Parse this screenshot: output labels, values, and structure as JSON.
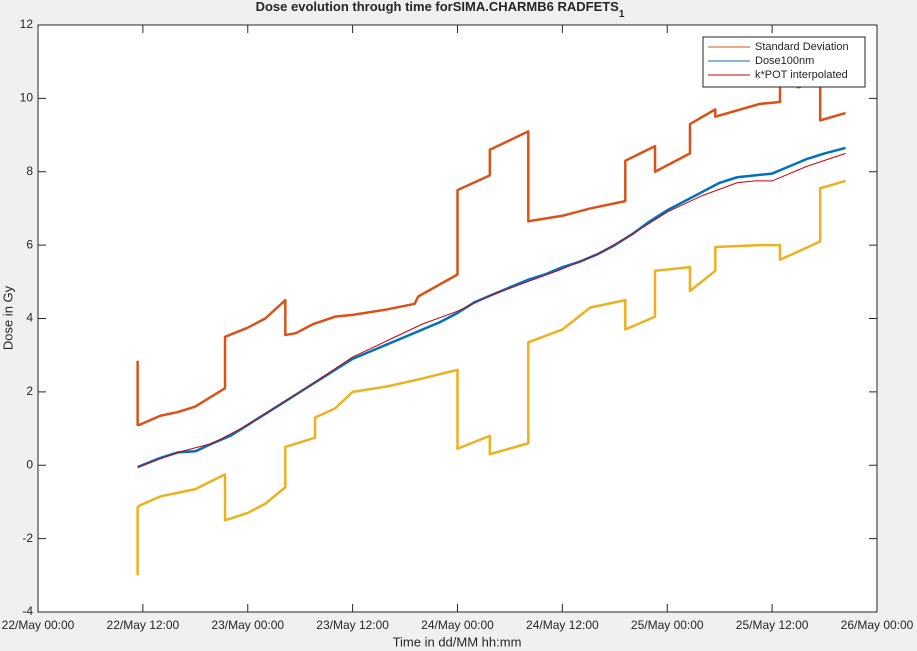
{
  "chart_data": {
    "type": "line",
    "title": "Dose evolution through time forSIMA.CHARMB6 RADFETS",
    "title_subscript": "1",
    "x_label": "Time in dd/MM hh:mm",
    "y_label": "Dose in Gy",
    "xlim": [
      0,
      96
    ],
    "xticks": [
      {
        "value": 0,
        "label": "22/May 00:00"
      },
      {
        "value": 12,
        "label": "22/May 12:00"
      },
      {
        "value": 24,
        "label": "23/May 00:00"
      },
      {
        "value": 36,
        "label": "23/May 12:00"
      },
      {
        "value": 48,
        "label": "24/May 00:00"
      },
      {
        "value": 60,
        "label": "24/May 12:00"
      },
      {
        "value": 72,
        "label": "25/May 00:00"
      },
      {
        "value": 84,
        "label": "25/May 12:00"
      },
      {
        "value": 96,
        "label": "26/May 00:00"
      }
    ],
    "ylim": [
      -4,
      12
    ],
    "yticks": [
      -4,
      -2,
      0,
      2,
      4,
      6,
      8,
      10,
      12
    ],
    "legend": "top-right",
    "series": [
      {
        "name": "Standard Deviation",
        "color": "#d95319",
        "x": [
          11.4,
          11.4,
          11.6,
          14,
          16,
          18,
          21.4,
          21.4,
          24,
          26,
          28.3,
          28.3,
          29.5,
          31.5,
          34,
          36,
          40,
          43.1,
          43.5,
          48,
          48,
          51.7,
          51.7,
          56.1,
          56.1,
          60,
          63.2,
          67.2,
          67.2,
          70.6,
          70.6,
          74.6,
          74.6,
          77.5,
          77.5,
          82.6,
          84.9,
          84.9,
          87,
          89.5,
          89.5,
          92.4
        ],
        "values": [
          2.85,
          1.1,
          1.1,
          1.35,
          1.45,
          1.6,
          2.1,
          3.5,
          3.75,
          4.0,
          4.5,
          3.55,
          3.6,
          3.85,
          4.05,
          4.1,
          4.25,
          4.4,
          4.6,
          5.2,
          7.5,
          7.9,
          8.6,
          9.1,
          6.65,
          6.8,
          7.0,
          7.2,
          8.3,
          8.7,
          8.0,
          8.5,
          9.3,
          9.7,
          9.5,
          9.85,
          9.9,
          10.6,
          10.3,
          10.5,
          9.4,
          9.6
        ]
      },
      {
        "name": "Dose100nm",
        "color": "#0072bd",
        "x": [
          11.4,
          14,
          16,
          18,
          20,
          22,
          24,
          26,
          28,
          30,
          32,
          34,
          36,
          38,
          40,
          42,
          44,
          46,
          48,
          50,
          52,
          54,
          56,
          58,
          60,
          62,
          64,
          66,
          68,
          70,
          72,
          74,
          76,
          78,
          80,
          82,
          84,
          86,
          88,
          90,
          92.4
        ],
        "values": [
          -0.05,
          0.2,
          0.35,
          0.38,
          0.6,
          0.8,
          1.1,
          1.4,
          1.7,
          2.0,
          2.3,
          2.6,
          2.9,
          3.1,
          3.3,
          3.5,
          3.7,
          3.9,
          4.15,
          4.45,
          4.65,
          4.85,
          5.05,
          5.2,
          5.4,
          5.55,
          5.75,
          6.0,
          6.3,
          6.65,
          6.95,
          7.2,
          7.45,
          7.7,
          7.85,
          7.9,
          7.95,
          8.15,
          8.35,
          8.5,
          8.65
        ]
      },
      {
        "name": "k*POT interpolated",
        "color": "#cc0000",
        "x": [
          11.4,
          16,
          20,
          24,
          30,
          36,
          40,
          44,
          48,
          52,
          56,
          60,
          64,
          68,
          72,
          76,
          80,
          82,
          84,
          88,
          92.4
        ],
        "values": [
          -0.05,
          0.35,
          0.6,
          1.1,
          2.0,
          2.95,
          3.4,
          3.85,
          4.2,
          4.65,
          5.0,
          5.35,
          5.75,
          6.3,
          6.9,
          7.35,
          7.7,
          7.75,
          7.75,
          8.15,
          8.5
        ]
      },
      {
        "name": null,
        "color": "#edb120",
        "x": [
          11.4,
          11.4,
          11.6,
          14,
          16,
          18,
          21.4,
          21.4,
          24,
          26,
          28.3,
          28.3,
          31.7,
          31.7,
          34,
          36,
          40,
          43.7,
          48,
          48,
          51.7,
          51.7,
          56.1,
          56.1,
          60,
          63.2,
          67.2,
          67.2,
          70.6,
          70.6,
          74.6,
          74.6,
          77.5,
          77.5,
          82.6,
          84.9,
          84.9,
          89.5,
          89.5,
          92.4
        ],
        "values": [
          -3.0,
          -1.15,
          -1.1,
          -0.85,
          -0.75,
          -0.65,
          -0.25,
          -1.5,
          -1.3,
          -1.05,
          -0.6,
          0.5,
          0.75,
          1.3,
          1.55,
          2.0,
          2.15,
          2.35,
          2.6,
          0.45,
          0.8,
          0.3,
          0.6,
          3.35,
          3.7,
          4.3,
          4.5,
          3.7,
          4.05,
          5.3,
          5.4,
          4.75,
          5.3,
          5.95,
          6.0,
          6.0,
          5.6,
          6.1,
          7.55,
          7.75
        ]
      }
    ]
  }
}
